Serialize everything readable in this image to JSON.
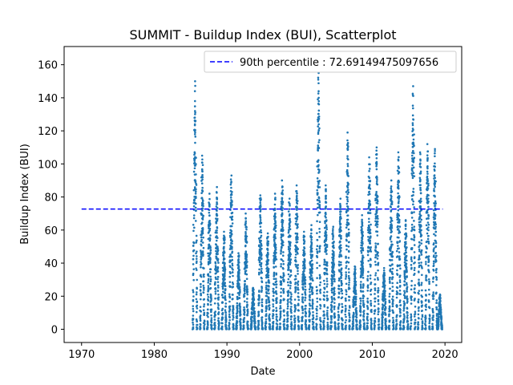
{
  "chart_data": {
    "type": "scatter",
    "title": "SUMMIT - Buildup Index (BUI), Scatterplot",
    "xlabel": "Date",
    "ylabel": "Buildup Index (BUI)",
    "xlim": [
      1967.6,
      2022.3
    ],
    "ylim": [
      -8,
      171
    ],
    "x_ticks": [
      1970,
      1980,
      1990,
      2000,
      2010,
      2020
    ],
    "y_ticks": [
      0,
      20,
      40,
      60,
      80,
      100,
      120,
      140,
      160
    ],
    "grid": false,
    "legend_position": "top-right",
    "reference_line": {
      "label": "90th percentile : 72.69149475097656",
      "value": 72.69149475097656,
      "x_range": [
        1970,
        2019.7
      ],
      "style": "dashed",
      "color": "#0000ff"
    },
    "series": [
      {
        "color": "#1f77b4",
        "season_peaks": [
          {
            "season": 1985.6,
            "peak": 150
          },
          {
            "season": 1986.6,
            "peak": 105
          },
          {
            "season": 1987.6,
            "peak": 82
          },
          {
            "season": 1988.6,
            "peak": 86
          },
          {
            "season": 1989.6,
            "peak": 59
          },
          {
            "season": 1990.6,
            "peak": 93
          },
          {
            "season": 1991.6,
            "peak": 46
          },
          {
            "season": 1992.6,
            "peak": 70
          },
          {
            "season": 1993.6,
            "peak": 25
          },
          {
            "season": 1994.6,
            "peak": 81
          },
          {
            "season": 1995.6,
            "peak": 58
          },
          {
            "season": 1996.6,
            "peak": 82
          },
          {
            "season": 1997.6,
            "peak": 90
          },
          {
            "season": 1998.6,
            "peak": 79
          },
          {
            "season": 1999.6,
            "peak": 87
          },
          {
            "season": 2000.6,
            "peak": 59
          },
          {
            "season": 2001.6,
            "peak": 63
          },
          {
            "season": 2002.6,
            "peak": 155
          },
          {
            "season": 2003.6,
            "peak": 87
          },
          {
            "season": 2004.6,
            "peak": 62
          },
          {
            "season": 2005.6,
            "peak": 79
          },
          {
            "season": 2006.6,
            "peak": 119
          },
          {
            "season": 2007.6,
            "peak": 38
          },
          {
            "season": 2008.6,
            "peak": 69
          },
          {
            "season": 2009.6,
            "peak": 104
          },
          {
            "season": 2010.6,
            "peak": 110
          },
          {
            "season": 2011.6,
            "peak": 37
          },
          {
            "season": 2012.6,
            "peak": 90
          },
          {
            "season": 2013.6,
            "peak": 107
          },
          {
            "season": 2014.6,
            "peak": 66
          },
          {
            "season": 2015.6,
            "peak": 147
          },
          {
            "season": 2016.6,
            "peak": 107
          },
          {
            "season": 2017.6,
            "peak": 112
          },
          {
            "season": 2018.6,
            "peak": 109
          },
          {
            "season": 2019.3,
            "peak": 21
          }
        ]
      }
    ]
  }
}
